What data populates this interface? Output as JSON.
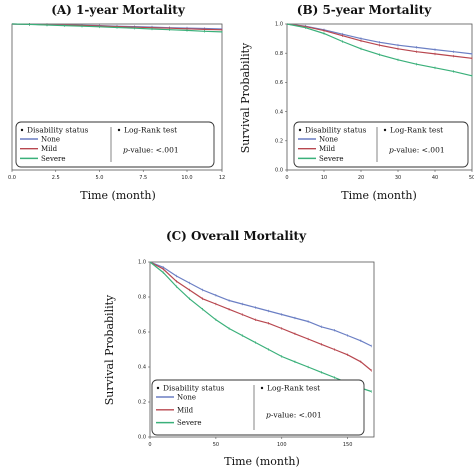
{
  "chart_data": [
    {
      "id": "A",
      "type": "line",
      "title": "(A) 1-year Mortality",
      "xlabel": "Time (month)",
      "ylabel": "",
      "xlim": [
        0,
        12
      ],
      "ylim": [
        0.0,
        1.0
      ],
      "xticks": [
        "0.0",
        "2.5",
        "5.0",
        "7.5",
        "10.0",
        "12"
      ],
      "yticks": [],
      "series": [
        {
          "name": "None",
          "color": "#6b7fc4",
          "x": [
            0,
            1,
            2,
            3,
            4,
            5,
            6,
            7,
            8,
            9,
            10,
            11,
            12
          ],
          "y": [
            1.0,
            0.998,
            0.996,
            0.994,
            0.992,
            0.989,
            0.985,
            0.982,
            0.979,
            0.975,
            0.972,
            0.969,
            0.966
          ]
        },
        {
          "name": "Mild",
          "color": "#b8474f",
          "x": [
            0,
            1,
            2,
            3,
            4,
            5,
            6,
            7,
            8,
            9,
            10,
            11,
            12
          ],
          "y": [
            1.0,
            0.998,
            0.995,
            0.993,
            0.99,
            0.986,
            0.982,
            0.978,
            0.975,
            0.971,
            0.967,
            0.963,
            0.96
          ]
        },
        {
          "name": "Severe",
          "color": "#3ab07a",
          "x": [
            0,
            1,
            2,
            3,
            4,
            5,
            6,
            7,
            8,
            9,
            10,
            11,
            12
          ],
          "y": [
            1.0,
            0.997,
            0.993,
            0.989,
            0.985,
            0.981,
            0.976,
            0.971,
            0.966,
            0.961,
            0.956,
            0.95,
            0.946
          ]
        }
      ],
      "legend": {
        "title": "Disability status",
        "entries": [
          "None",
          "Mild",
          "Severe"
        ],
        "test_label": "Log-Rank test",
        "p_prefix": "p",
        "p_text": "-value: <.001"
      }
    },
    {
      "id": "B",
      "type": "line",
      "title": "(B) 5-year Mortality",
      "xlabel": "Time (month)",
      "ylabel": "Survival Probability",
      "xlim": [
        0,
        50
      ],
      "ylim": [
        0.0,
        1.0
      ],
      "xticks": [
        "0",
        "10",
        "20",
        "30",
        "40",
        "50"
      ],
      "yticks": [
        "0.0",
        "0.2",
        "0.4",
        "0.6",
        "0.8",
        "1.0"
      ],
      "series": [
        {
          "name": "None",
          "color": "#6b7fc4",
          "x": [
            0,
            5,
            10,
            15,
            20,
            25,
            30,
            35,
            40,
            45,
            50
          ],
          "y": [
            1.0,
            0.985,
            0.96,
            0.93,
            0.9,
            0.875,
            0.855,
            0.84,
            0.825,
            0.81,
            0.795
          ]
        },
        {
          "name": "Mild",
          "color": "#b8474f",
          "x": [
            0,
            5,
            10,
            15,
            20,
            25,
            30,
            35,
            40,
            45,
            50
          ],
          "y": [
            1.0,
            0.982,
            0.955,
            0.92,
            0.885,
            0.855,
            0.83,
            0.81,
            0.795,
            0.78,
            0.765
          ]
        },
        {
          "name": "Severe",
          "color": "#3ab07a",
          "x": [
            0,
            5,
            10,
            15,
            20,
            25,
            30,
            35,
            40,
            45,
            50
          ],
          "y": [
            1.0,
            0.975,
            0.935,
            0.88,
            0.83,
            0.79,
            0.755,
            0.725,
            0.7,
            0.675,
            0.645
          ]
        }
      ],
      "legend": {
        "title": "Disability status",
        "entries": [
          "None",
          "Mild",
          "Severe"
        ],
        "test_label": "Log-Rank test",
        "p_prefix": "p",
        "p_text": "-value: <.001"
      }
    },
    {
      "id": "C",
      "type": "line",
      "title": "(C) Overall Mortality",
      "xlabel": "Time (month)",
      "ylabel": "Survival Probability",
      "xlim": [
        0,
        170
      ],
      "ylim": [
        0.0,
        1.0
      ],
      "xticks": [
        "0",
        "50",
        "100",
        "150"
      ],
      "yticks": [
        "0.0",
        "0.2",
        "0.4",
        "0.6",
        "0.8",
        "1.0"
      ],
      "series": [
        {
          "name": "None",
          "color": "#6b7fc4",
          "x": [
            0,
            10,
            20,
            30,
            40,
            50,
            60,
            70,
            80,
            90,
            100,
            110,
            120,
            130,
            140,
            150,
            160,
            168
          ],
          "y": [
            1.0,
            0.97,
            0.92,
            0.88,
            0.84,
            0.81,
            0.78,
            0.76,
            0.74,
            0.72,
            0.7,
            0.68,
            0.66,
            0.63,
            0.61,
            0.58,
            0.55,
            0.52
          ]
        },
        {
          "name": "Mild",
          "color": "#b8474f",
          "x": [
            0,
            10,
            20,
            30,
            40,
            50,
            60,
            70,
            80,
            90,
            100,
            110,
            120,
            130,
            140,
            150,
            160,
            168
          ],
          "y": [
            1.0,
            0.96,
            0.89,
            0.84,
            0.79,
            0.76,
            0.73,
            0.7,
            0.67,
            0.65,
            0.62,
            0.59,
            0.56,
            0.53,
            0.5,
            0.47,
            0.43,
            0.38
          ]
        },
        {
          "name": "Severe",
          "color": "#3ab07a",
          "x": [
            0,
            10,
            20,
            30,
            40,
            50,
            60,
            70,
            80,
            90,
            100,
            110,
            120,
            130,
            140,
            150,
            160,
            168
          ],
          "y": [
            1.0,
            0.94,
            0.86,
            0.79,
            0.73,
            0.67,
            0.62,
            0.58,
            0.54,
            0.5,
            0.46,
            0.43,
            0.4,
            0.37,
            0.34,
            0.31,
            0.28,
            0.26
          ]
        }
      ],
      "legend": {
        "title": "Disability status",
        "entries": [
          "None",
          "Mild",
          "Severe"
        ],
        "test_label": "Log-Rank test",
        "p_prefix": "p",
        "p_text": "-value: <.001"
      }
    }
  ]
}
